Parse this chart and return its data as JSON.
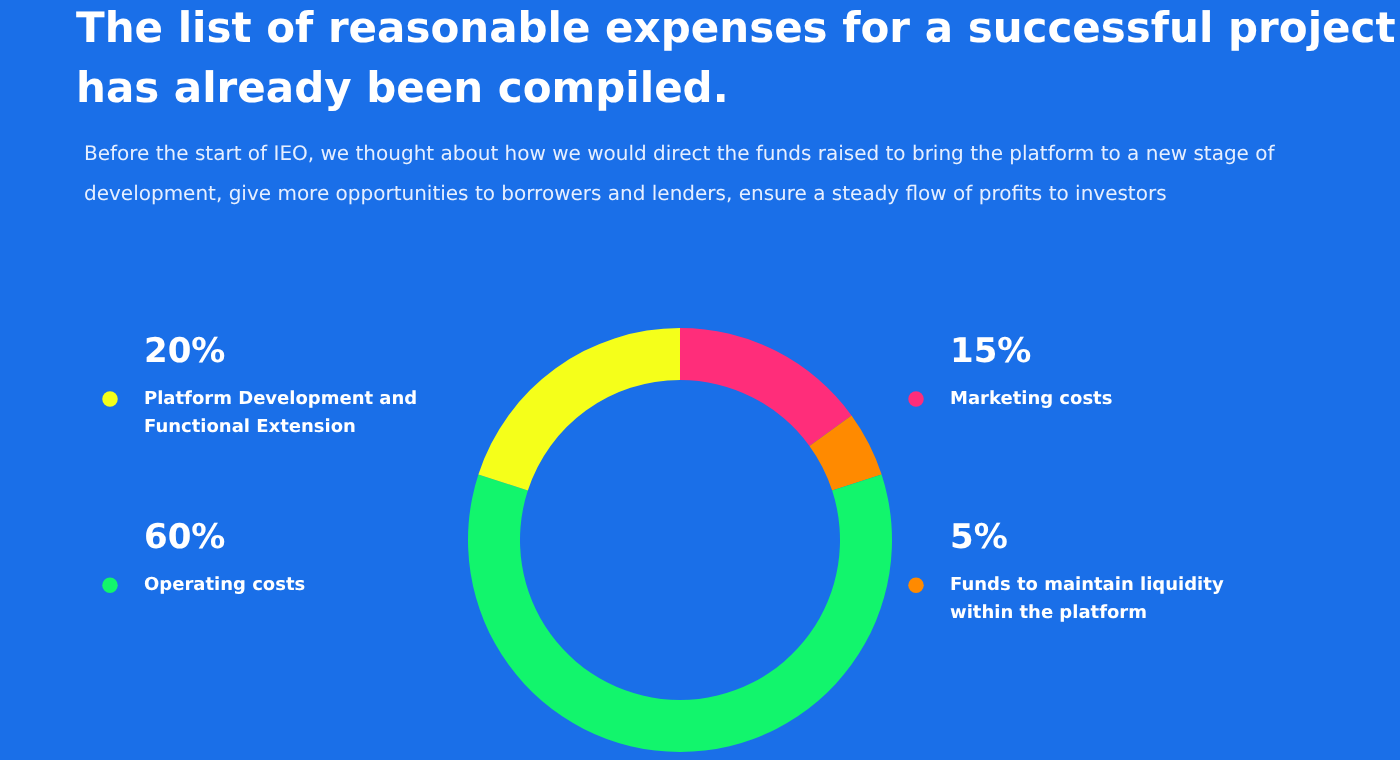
{
  "chart_data": {
    "type": "donut",
    "title": "The list of reasonable expenses for a successful project has already been compiled.",
    "subtitle": "Before the start of IEO, we thought about how we would direct the funds raised to bring the platform to a new stage of development, give more opportunities to borrowers and lenders, ensure a steady flow of profits to investors",
    "categories": [
      "Marketing costs",
      "Funds to maintain liquidity within the platform",
      "Operating costs",
      "Platform Development and Functional Extension"
    ],
    "values": [
      15,
      5,
      60,
      20
    ],
    "value_labels": [
      "15%",
      "5%",
      "60%",
      "20%"
    ],
    "legend": "left",
    "colors": [
      "#ff2d7a",
      "#ff8a00",
      "#12f56c",
      "#f5ff1a"
    ]
  }
}
